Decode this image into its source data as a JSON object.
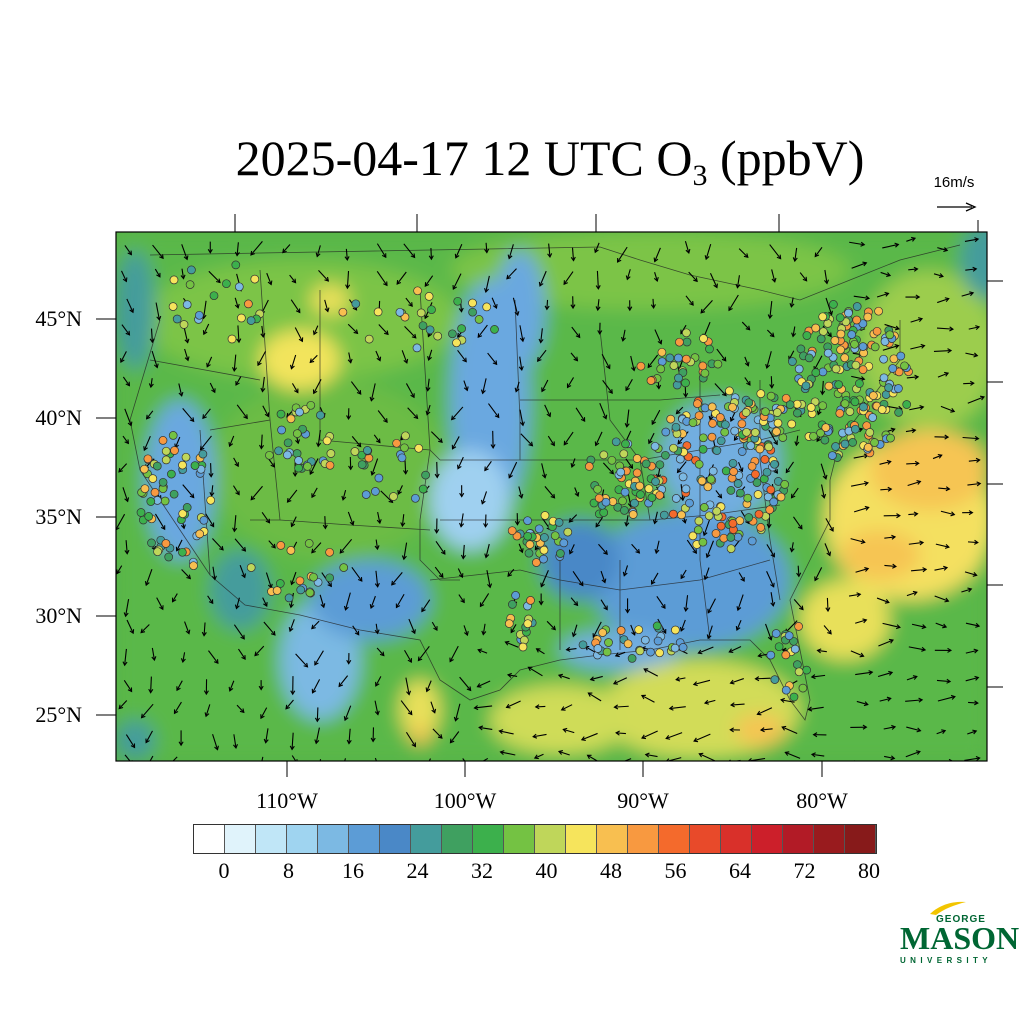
{
  "title": {
    "main": "2025-04-17 12 UTC O",
    "subscript": "3",
    "units": " (ppbV)"
  },
  "reference_vector": {
    "label": "16m/s"
  },
  "map": {
    "lat_ticks": [
      "45°N",
      "40°N",
      "35°N",
      "30°N",
      "25°N"
    ],
    "lon_ticks": [
      "110°W",
      "100°W",
      "90°W",
      "80°W"
    ]
  },
  "colorbar": {
    "colors": [
      "#ffffff",
      "#e0f3fb",
      "#c0e6f7",
      "#9fd4f0",
      "#7cb9e3",
      "#5c9cd6",
      "#4a88c7",
      "#449c9c",
      "#3fa060",
      "#3cb04c",
      "#74c243",
      "#bfd65a",
      "#f6e45c",
      "#f8bf50",
      "#f89940",
      "#f46a2c",
      "#e84a2a",
      "#d9302a",
      "#cc1f2a",
      "#b21b26",
      "#991b1e",
      "#871a1a"
    ],
    "labels": [
      "0",
      "8",
      "16",
      "24",
      "32",
      "40",
      "48",
      "56",
      "64",
      "72",
      "80"
    ]
  },
  "logo": {
    "line1": "GEORGE",
    "line2": "MASON",
    "line3": "UNIVERSITY",
    "color": "#006633",
    "accent": "#f2c500"
  }
}
